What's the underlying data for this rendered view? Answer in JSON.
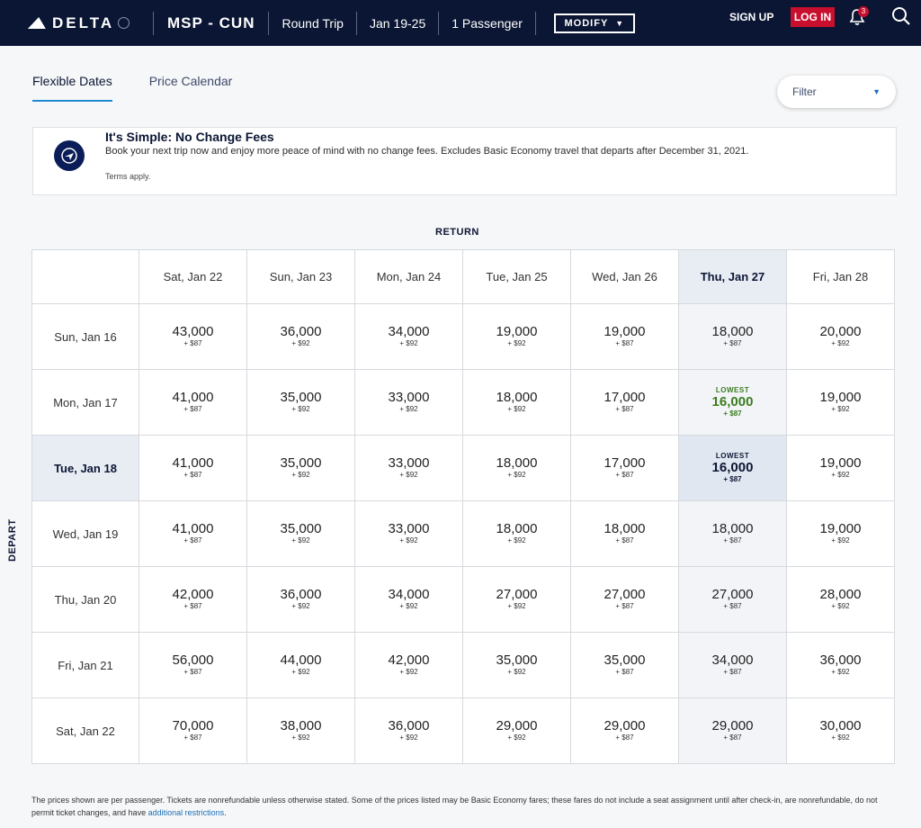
{
  "header": {
    "brand": "DELTA",
    "route": "MSP - CUN",
    "trip_type": "Round Trip",
    "dates": "Jan 19-25",
    "passengers": "1 Passenger",
    "modify_label": "MODIFY",
    "signup_label": "SIGN UP",
    "login_label": "LOG IN",
    "notification_count": "3",
    "login_color": "#c8102e",
    "bar_color": "#0b1634"
  },
  "tabs": [
    {
      "label": "Flexible Dates",
      "active": true
    },
    {
      "label": "Price Calendar",
      "active": false
    }
  ],
  "filter": {
    "label": "Filter"
  },
  "notice": {
    "title": "It's Simple: No Change Fees",
    "body": "Book your next trip now and enjoy more peace of mind with no change fees. Excludes Basic Economy travel that departs after December 31, 2021.",
    "terms": "Terms apply."
  },
  "grid": {
    "return_label": "RETURN",
    "depart_label": "DEPART",
    "return_dates": [
      "Sat, Jan 22",
      "Sun, Jan 23",
      "Mon, Jan 24",
      "Tue, Jan 25",
      "Wed, Jan 26",
      "Thu, Jan 27",
      "Fri, Jan 28"
    ],
    "selected_return_index": 5,
    "selected_depart_index": 2,
    "rows": [
      {
        "depart": "Sun, Jan 16",
        "cells": [
          {
            "miles": "43,000",
            "tax": "+ $87"
          },
          {
            "miles": "36,000",
            "tax": "+ $92"
          },
          {
            "miles": "34,000",
            "tax": "+ $92"
          },
          {
            "miles": "19,000",
            "tax": "+ $92"
          },
          {
            "miles": "19,000",
            "tax": "+ $87"
          },
          {
            "miles": "18,000",
            "tax": "+ $87"
          },
          {
            "miles": "20,000",
            "tax": "+ $92"
          }
        ]
      },
      {
        "depart": "Mon, Jan 17",
        "cells": [
          {
            "miles": "41,000",
            "tax": "+ $87"
          },
          {
            "miles": "35,000",
            "tax": "+ $92"
          },
          {
            "miles": "33,000",
            "tax": "+ $92"
          },
          {
            "miles": "18,000",
            "tax": "+ $92"
          },
          {
            "miles": "17,000",
            "tax": "+ $87"
          },
          {
            "miles": "16,000",
            "tax": "+ $87",
            "badge": "LOWEST",
            "style": "lowest"
          },
          {
            "miles": "19,000",
            "tax": "+ $92"
          }
        ]
      },
      {
        "depart": "Tue, Jan 18",
        "cells": [
          {
            "miles": "41,000",
            "tax": "+ $87"
          },
          {
            "miles": "35,000",
            "tax": "+ $92"
          },
          {
            "miles": "33,000",
            "tax": "+ $92"
          },
          {
            "miles": "18,000",
            "tax": "+ $92"
          },
          {
            "miles": "17,000",
            "tax": "+ $87"
          },
          {
            "miles": "16,000",
            "tax": "+ $87",
            "badge": "LOWEST",
            "style": "selected"
          },
          {
            "miles": "19,000",
            "tax": "+ $92"
          }
        ]
      },
      {
        "depart": "Wed, Jan 19",
        "cells": [
          {
            "miles": "41,000",
            "tax": "+ $87"
          },
          {
            "miles": "35,000",
            "tax": "+ $92"
          },
          {
            "miles": "33,000",
            "tax": "+ $92"
          },
          {
            "miles": "18,000",
            "tax": "+ $92"
          },
          {
            "miles": "18,000",
            "tax": "+ $87"
          },
          {
            "miles": "18,000",
            "tax": "+ $87"
          },
          {
            "miles": "19,000",
            "tax": "+ $92"
          }
        ]
      },
      {
        "depart": "Thu, Jan 20",
        "cells": [
          {
            "miles": "42,000",
            "tax": "+ $87"
          },
          {
            "miles": "36,000",
            "tax": "+ $92"
          },
          {
            "miles": "34,000",
            "tax": "+ $92"
          },
          {
            "miles": "27,000",
            "tax": "+ $92"
          },
          {
            "miles": "27,000",
            "tax": "+ $87"
          },
          {
            "miles": "27,000",
            "tax": "+ $87"
          },
          {
            "miles": "28,000",
            "tax": "+ $92"
          }
        ]
      },
      {
        "depart": "Fri, Jan 21",
        "cells": [
          {
            "miles": "56,000",
            "tax": "+ $87"
          },
          {
            "miles": "44,000",
            "tax": "+ $92"
          },
          {
            "miles": "42,000",
            "tax": "+ $92"
          },
          {
            "miles": "35,000",
            "tax": "+ $92"
          },
          {
            "miles": "35,000",
            "tax": "+ $87"
          },
          {
            "miles": "34,000",
            "tax": "+ $87"
          },
          {
            "miles": "36,000",
            "tax": "+ $92"
          }
        ]
      },
      {
        "depart": "Sat, Jan 22",
        "cells": [
          {
            "miles": "70,000",
            "tax": "+ $87"
          },
          {
            "miles": "38,000",
            "tax": "+ $92"
          },
          {
            "miles": "36,000",
            "tax": "+ $92"
          },
          {
            "miles": "29,000",
            "tax": "+ $92"
          },
          {
            "miles": "29,000",
            "tax": "+ $87"
          },
          {
            "miles": "29,000",
            "tax": "+ $87"
          },
          {
            "miles": "30,000",
            "tax": "+ $92"
          }
        ]
      }
    ]
  },
  "footer": {
    "text": "The prices shown are per passenger. Tickets are nonrefundable unless otherwise stated. Some of the prices listed may be Basic Economy fares; these fares do not include a seat assignment until after check-in, are nonrefundable, do not permit ticket changes, and have ",
    "link": "additional restrictions",
    "end": "."
  }
}
